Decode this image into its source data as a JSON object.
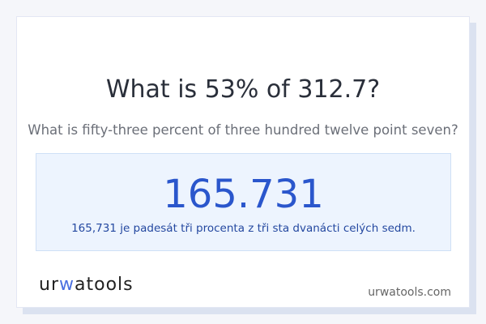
{
  "question": "What is 53% of 312.7?",
  "question_words": "What is fifty-three percent of three hundred twelve point seven?",
  "answer": "165.731",
  "answer_words": "165,731 je padesát tři procenta z tři sta dvanácti celých sedm.",
  "logo": {
    "part1": "ur",
    "part2": "w",
    "part3": "atools"
  },
  "site": "urwatools.com",
  "colors": {
    "accent": "#2a56cc"
  }
}
